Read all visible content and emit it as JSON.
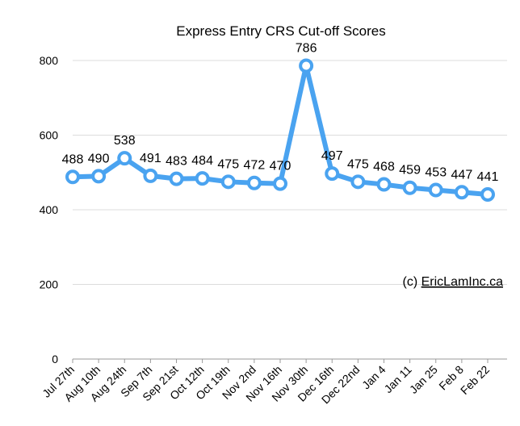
{
  "chart_data": {
    "type": "line",
    "title": "Express Entry CRS Cut-off Scores",
    "xlabel": "",
    "ylabel": "",
    "ylim": [
      0,
      800
    ],
    "yticks": [
      0,
      200,
      400,
      600,
      800
    ],
    "grid": true,
    "categories": [
      "Jul 27th",
      "Aug 10th",
      "Aug 24th",
      "Sep 7th",
      "Sep 21st",
      "Oct 12th",
      "Oct 19th",
      "Nov 2nd",
      "Nov 16th",
      "Nov 30th",
      "Dec 16th",
      "Dec 22nd",
      "Jan 4",
      "Jan 11",
      "Jan 25",
      "Feb 8",
      "Feb 22"
    ],
    "series": [
      {
        "values": [
          488,
          490,
          538,
          491,
          483,
          484,
          475,
          472,
          470,
          786,
          497,
          475,
          468,
          459,
          453,
          447,
          441
        ]
      }
    ],
    "line_color": "#4aa3f0"
  },
  "credit": {
    "prefix": "(c) ",
    "link": "EricLamInc.ca"
  }
}
